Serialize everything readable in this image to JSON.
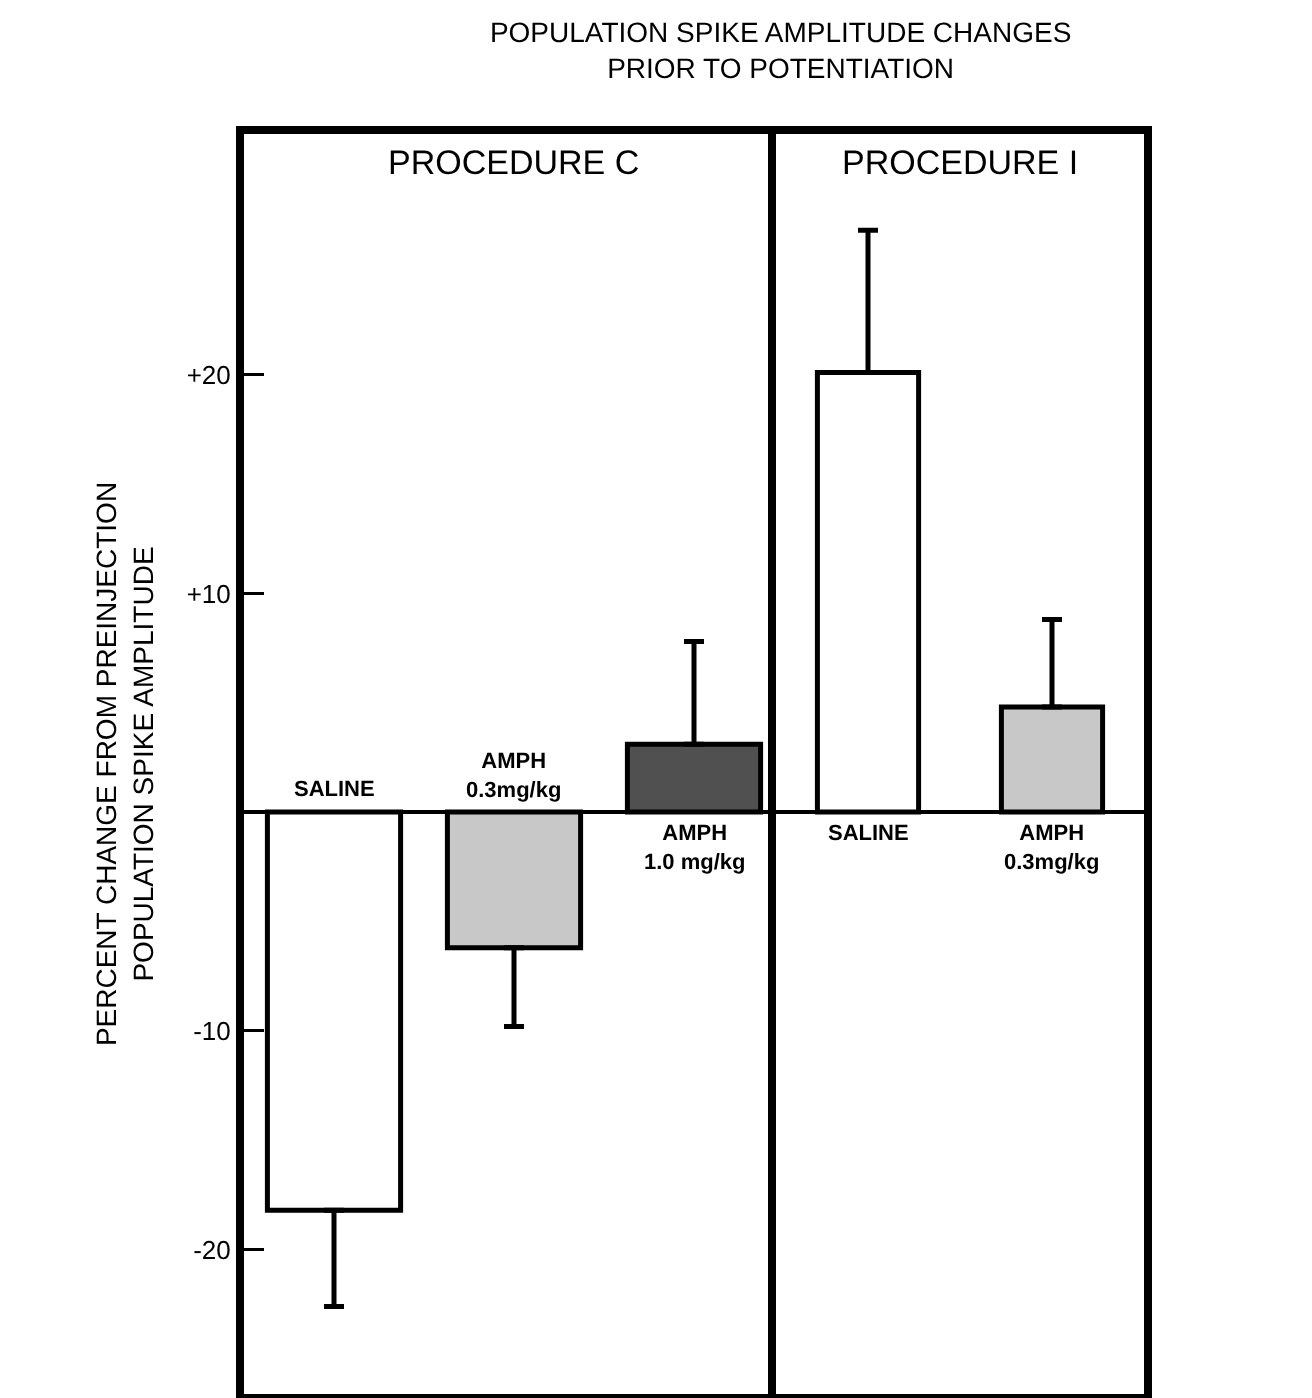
{
  "chart_data": [
    {
      "type": "bar",
      "title": "POPULATION SPIKE AMPLITUDE CHANGES\nPRIOR TO POTENTIATION",
      "subtitle": "PROCEDURE C",
      "ylabel": "PERCENT CHANGE FROM PREINJECTION\nPOPULATION SPIKE AMPLITUDE",
      "categories": [
        "SALINE",
        "AMPH 0.3mg/kg",
        "AMPH 1.0 mg/kg"
      ],
      "values": [
        -18.2,
        -6.2,
        3.1
      ],
      "colors": [
        "#ffffff",
        "#c8c8c8",
        "#505050"
      ],
      "errors": [
        [
          -22.6,
          -18.2
        ],
        [
          -9.8,
          -6.2
        ],
        [
          3.1,
          7.8
        ]
      ],
      "ylim": [
        -26.6,
        31
      ],
      "yticks": [
        {
          "value": 20,
          "label": "+20"
        },
        {
          "value": 10,
          "label": "+10"
        },
        -10,
        -20
      ],
      "grid": false,
      "legend": false
    },
    {
      "type": "bar",
      "subtitle": "PROCEDURE I",
      "categories": [
        "SALINE",
        "AMPH 0.3mg/kg"
      ],
      "values": [
        20.1,
        4.8
      ],
      "colors": [
        "#ffffff",
        "#c8c8c8"
      ],
      "errors": [
        [
          20.1,
          26.6
        ],
        [
          4.8,
          8.8
        ]
      ],
      "ylim": [
        -26.6,
        31
      ],
      "tick_labels": "x",
      "grid": false,
      "legend": false
    }
  ]
}
